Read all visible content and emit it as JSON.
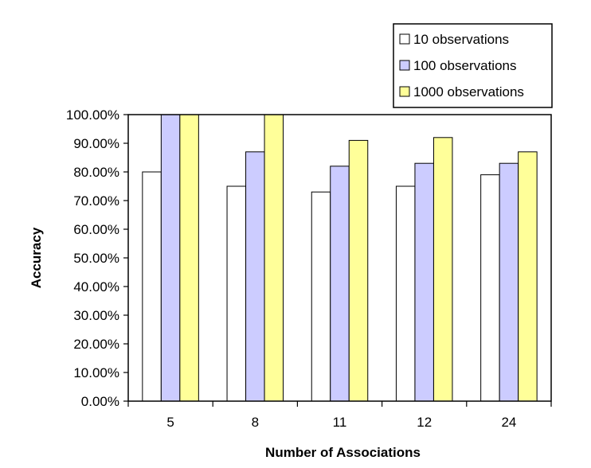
{
  "chart_data": {
    "type": "bar",
    "categories": [
      "5",
      "8",
      "11",
      "12",
      "24"
    ],
    "series": [
      {
        "name": "10 observations",
        "values": [
          80,
          75,
          73,
          75,
          79
        ],
        "color": "#ffffff"
      },
      {
        "name": "100 observations",
        "values": [
          100,
          87,
          82,
          83,
          83
        ],
        "color": "#ccccff"
      },
      {
        "name": "1000 observations",
        "values": [
          100,
          100,
          91,
          92,
          87
        ],
        "color": "#ffff99"
      }
    ],
    "y_ticks": [
      "0.00%",
      "10.00%",
      "20.00%",
      "30.00%",
      "40.00%",
      "50.00%",
      "60.00%",
      "70.00%",
      "80.00%",
      "90.00%",
      "100.00%"
    ],
    "ylim": [
      0,
      100
    ],
    "xlabel": "Number of Associations",
    "ylabel": "Accuracy",
    "grid": false,
    "legend_position": "top-right"
  }
}
